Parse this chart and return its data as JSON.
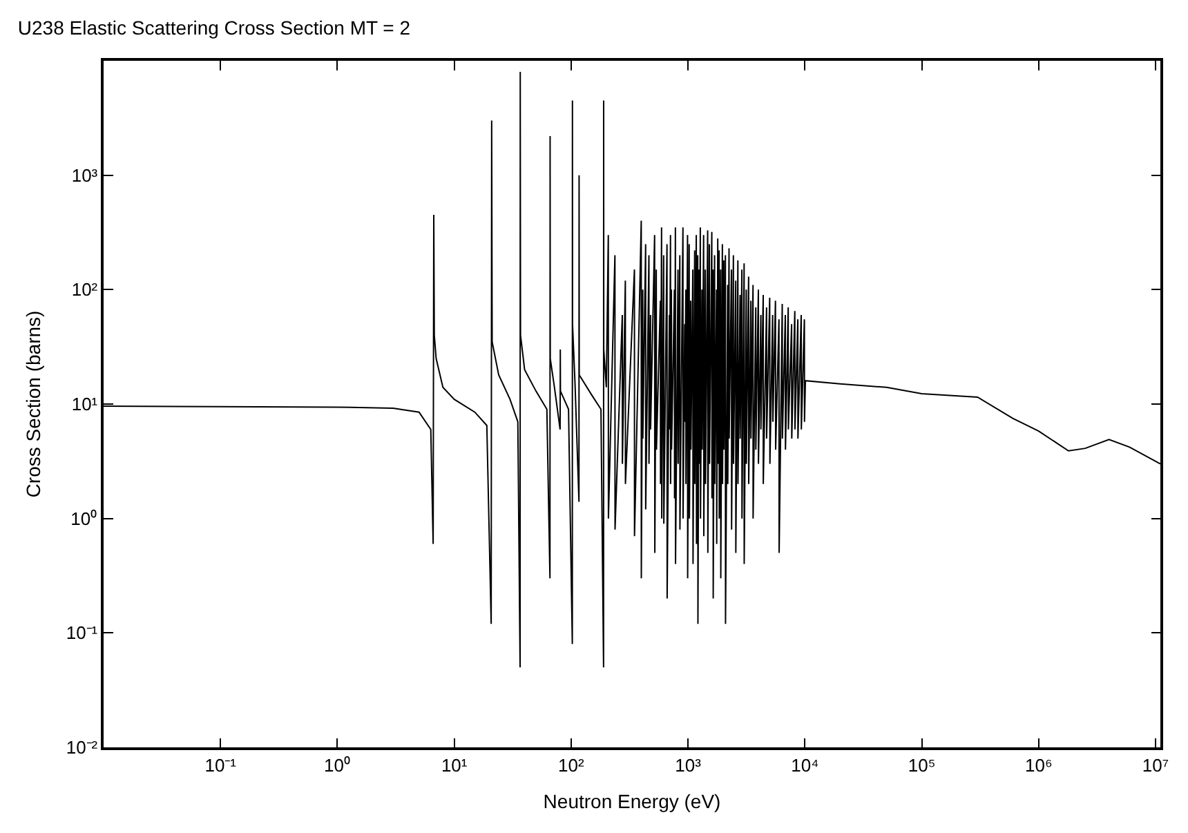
{
  "chart_data": {
    "type": "line",
    "title": "U238 Elastic Scattering Cross Section MT = 2",
    "xlabel": "Neutron Energy (eV)",
    "ylabel": "Cross Section (barns)",
    "log": "xy",
    "marker": "none",
    "line_style": "solid",
    "xlim": [
      0.01,
      11000000
    ],
    "ylim": [
      0.01,
      10000
    ],
    "xticks": [
      {
        "value": 0.1,
        "label": "10⁻¹"
      },
      {
        "value": 1,
        "label": "10⁰"
      },
      {
        "value": 10,
        "label": "10¹"
      },
      {
        "value": 100,
        "label": "10²"
      },
      {
        "value": 1000,
        "label": "10³"
      },
      {
        "value": 10000,
        "label": "10⁴"
      },
      {
        "value": 100000,
        "label": "10⁵"
      },
      {
        "value": 1000000,
        "label": "10⁶"
      },
      {
        "value": 10000000,
        "label": "10⁷"
      }
    ],
    "yticks": [
      {
        "value": 0.01,
        "label": "10⁻²"
      },
      {
        "value": 0.1,
        "label": "10⁻¹"
      },
      {
        "value": 1,
        "label": "10⁰"
      },
      {
        "value": 10,
        "label": "10¹"
      },
      {
        "value": 100,
        "label": "10²"
      },
      {
        "value": 1000,
        "label": "10³"
      }
    ],
    "series": [
      {
        "color": "#000000",
        "x": [
          0.01,
          0.1,
          1,
          3,
          5,
          6.3,
          6.6,
          6.68,
          6.75,
          7,
          8,
          10,
          15,
          19,
          20.7,
          20.9,
          21.1,
          24,
          30,
          35,
          36.6,
          36.7,
          36.9,
          40,
          50,
          62,
          65.9,
          66.1,
          66.3,
          72,
          80.5,
          80.8,
          81,
          95,
          102.4,
          102.6,
          102.8,
          108,
          116.7,
          117,
          117.3,
          150,
          180,
          189.5,
          189.8,
          190.2,
          200,
          208,
          208.5,
          237,
          237.5,
          274,
          274.5,
          291,
          291.5,
          348,
          348.5,
          398,
          398.5,
          410,
          410.5,
          434,
          434.5,
          463,
          463.5,
          478,
          478.5,
          518,
          520,
          535,
          537,
          580,
          582,
          594,
          596,
          619,
          621,
          661,
          663,
          693,
          695,
          708,
          710,
          721,
          723,
          765,
          767,
          780,
          782,
          821,
          823,
          851,
          853,
          905,
          907,
          937,
          939,
          958,
          960,
          991,
          993,
          1023,
          1028,
          1054,
          1059,
          1099,
          1104,
          1140,
          1145,
          1177,
          1182,
          1211,
          1216,
          1245,
          1250,
          1274,
          1279,
          1316,
          1321,
          1360,
          1365,
          1405,
          1410,
          1473,
          1478,
          1522,
          1527,
          1598,
          1603,
          1638,
          1643,
          1688,
          1693,
          1755,
          1760,
          1797,
          1802,
          1845,
          1850,
          1902,
          1907,
          1968,
          1973,
          2024,
          2029,
          2089,
          2094,
          2185,
          2190,
          2244,
          2249,
          2355,
          2360,
          2445,
          2450,
          2560,
          2565,
          2671,
          2676,
          2790,
          2795,
          2890,
          2895,
          3020,
          3025,
          3150,
          3155,
          3300,
          3305,
          3450,
          3455,
          3600,
          3605,
          3800,
          3805,
          4000,
          4005,
          4200,
          4205,
          4400,
          4405,
          4700,
          4705,
          5000,
          5020,
          5300,
          5320,
          5600,
          5620,
          6000,
          6020,
          6400,
          6420,
          6800,
          6820,
          7200,
          7220,
          7700,
          7720,
          8200,
          8220,
          8700,
          8720,
          9300,
          9320,
          9900,
          9920,
          10100,
          20000,
          50000,
          100000,
          300000,
          600000,
          1000000,
          1800000,
          2500000,
          4000000,
          6000000,
          11000000
        ],
        "values": [
          9.6,
          9.5,
          9.4,
          9.2,
          8.5,
          6,
          0.6,
          450,
          40,
          25,
          14,
          11,
          8.5,
          6.5,
          0.12,
          3000,
          35,
          18,
          11,
          7,
          0.05,
          8000,
          40,
          20,
          13,
          9,
          0.3,
          2200,
          25,
          14,
          6,
          30,
          13,
          9,
          0.08,
          4500,
          50,
          15,
          1.4,
          1000,
          18,
          12,
          9,
          0.05,
          4500,
          30,
          14,
          300,
          1,
          200,
          0.8,
          60,
          3,
          120,
          2,
          150,
          0.7,
          400,
          0.3,
          100,
          5,
          250,
          1.2,
          200,
          3,
          60,
          6,
          300,
          0.5,
          150,
          4,
          80,
          2,
          350,
          1,
          200,
          0.9,
          250,
          0.2,
          60,
          6,
          300,
          2,
          100,
          4,
          100,
          1.5,
          350,
          0.4,
          150,
          3,
          200,
          0.8,
          350,
          1,
          50,
          7,
          100,
          2,
          300,
          0.3,
          250,
          1,
          80,
          4,
          150,
          0.4,
          220,
          2,
          300,
          0.6,
          200,
          0.12,
          150,
          3,
          350,
          1,
          100,
          4,
          300,
          0.7,
          150,
          2,
          330,
          0.5,
          250,
          3,
          320,
          1.5,
          150,
          0.2,
          200,
          2,
          100,
          0.6,
          280,
          3,
          220,
          1,
          150,
          0.3,
          250,
          2,
          180,
          4,
          200,
          0.12,
          110,
          2,
          230,
          5,
          150,
          0.8,
          200,
          3,
          120,
          0.5,
          180,
          2,
          90,
          5,
          150,
          1,
          170,
          0.4,
          100,
          3,
          130,
          2,
          80,
          5,
          110,
          1,
          70,
          4,
          100,
          3,
          60,
          6,
          90,
          2,
          70,
          5,
          85,
          3,
          60,
          7,
          80,
          4,
          55,
          0.5,
          75,
          5,
          60,
          4,
          70,
          6,
          50,
          5,
          65,
          6,
          55,
          5,
          60,
          6,
          55,
          7,
          16,
          15,
          14,
          12.3,
          11.5,
          7.5,
          5.8,
          3.9,
          4.1,
          4.9,
          4.2,
          3
        ]
      }
    ]
  }
}
